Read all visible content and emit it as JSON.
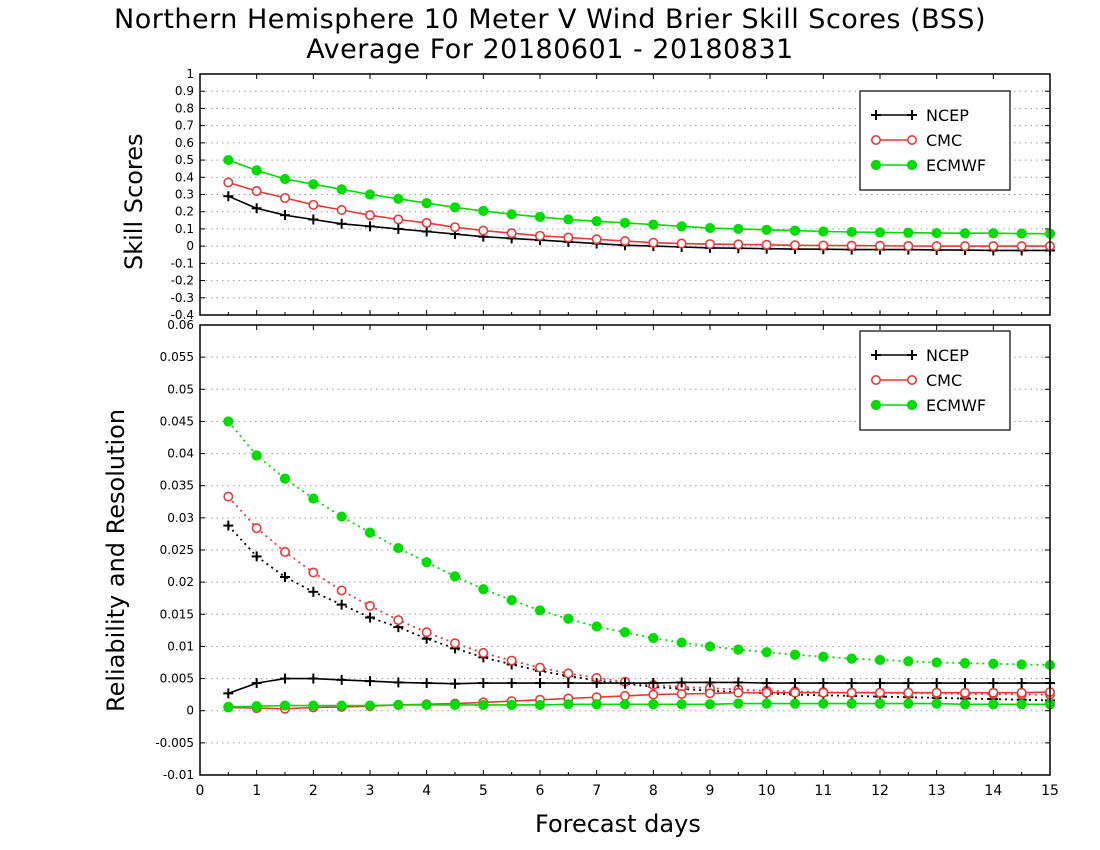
{
  "title_line1": "Northern Hemisphere 10 Meter V Wind Brier Skill Scores (BSS)",
  "title_line2": "Average For 20180601 - 20180831",
  "xlabel": "Forecast days",
  "colors": {
    "NCEP": "#000000",
    "CMC": "#e83838",
    "ECMWF": "#00dc00",
    "grid": "#9a9a9a"
  },
  "chart_data": [
    {
      "type": "line",
      "ylabel": "Skill Scores",
      "ylim": [
        -0.4,
        1
      ],
      "xlim": [
        0,
        15
      ],
      "yticks": [
        "-0.4",
        "-0.3",
        "-0.2",
        "-0.1",
        "0",
        "0.1",
        "0.2",
        "0.3",
        "0.4",
        "0.5",
        "0.6",
        "0.7",
        "0.8",
        "0.9",
        "1"
      ],
      "xticks": [
        "0",
        "1",
        "2",
        "3",
        "4",
        "5",
        "6",
        "7",
        "8",
        "9",
        "10",
        "11",
        "12",
        "13",
        "14",
        "15"
      ],
      "grid": "dotted horizontal",
      "legend": {
        "position": "top-right",
        "entries": [
          "NCEP",
          "CMC",
          "ECMWF"
        ]
      },
      "x": [
        0.5,
        1,
        1.5,
        2,
        2.5,
        3,
        3.5,
        4,
        4.5,
        5,
        5.5,
        6,
        6.5,
        7,
        7.5,
        8,
        8.5,
        9,
        9.5,
        10,
        10.5,
        11,
        11.5,
        12,
        12.5,
        13,
        13.5,
        14,
        14.5,
        15
      ],
      "series": [
        {
          "name": "NCEP",
          "marker": "plus",
          "style": "solid",
          "values": [
            0.29,
            0.22,
            0.18,
            0.155,
            0.13,
            0.115,
            0.1,
            0.085,
            0.07,
            0.055,
            0.045,
            0.035,
            0.025,
            0.015,
            0.005,
            0.0,
            -0.005,
            -0.01,
            -0.012,
            -0.015,
            -0.017,
            -0.018,
            -0.02,
            -0.02,
            -0.02,
            -0.022,
            -0.023,
            -0.025,
            -0.025,
            -0.025
          ]
        },
        {
          "name": "CMC",
          "marker": "open-circle",
          "style": "solid",
          "values": [
            0.37,
            0.32,
            0.28,
            0.24,
            0.21,
            0.18,
            0.155,
            0.135,
            0.11,
            0.09,
            0.075,
            0.06,
            0.05,
            0.04,
            0.03,
            0.02,
            0.015,
            0.012,
            0.01,
            0.008,
            0.005,
            0.004,
            0.003,
            0.002,
            0.001,
            0.0,
            0.0,
            0.0,
            0.0,
            0.0
          ]
        },
        {
          "name": "ECMWF",
          "marker": "filled-circle",
          "style": "solid",
          "values": [
            0.5,
            0.44,
            0.39,
            0.36,
            0.33,
            0.3,
            0.275,
            0.25,
            0.225,
            0.205,
            0.185,
            0.17,
            0.155,
            0.145,
            0.135,
            0.125,
            0.115,
            0.105,
            0.1,
            0.095,
            0.09,
            0.085,
            0.082,
            0.08,
            0.078,
            0.076,
            0.075,
            0.075,
            0.073,
            0.072
          ]
        }
      ]
    },
    {
      "type": "line",
      "ylabel": "Reliability and Resolution",
      "ylim": [
        -0.01,
        0.06
      ],
      "xlim": [
        0,
        15
      ],
      "yticks": [
        "-0.01",
        "-0.005",
        "0",
        "0.005",
        "0.01",
        "0.015",
        "0.02",
        "0.025",
        "0.03",
        "0.035",
        "0.04",
        "0.045",
        "0.05",
        "0.055",
        "0.06"
      ],
      "xticks": [
        "0",
        "1",
        "2",
        "3",
        "4",
        "5",
        "6",
        "7",
        "8",
        "9",
        "10",
        "11",
        "12",
        "13",
        "14",
        "15"
      ],
      "grid": "dotted horizontal",
      "legend": {
        "position": "top-right",
        "entries": [
          "NCEP",
          "CMC",
          "ECMWF"
        ]
      },
      "x": [
        0.5,
        1,
        1.5,
        2,
        2.5,
        3,
        3.5,
        4,
        4.5,
        5,
        5.5,
        6,
        6.5,
        7,
        7.5,
        8,
        8.5,
        9,
        9.5,
        10,
        10.5,
        11,
        11.5,
        12,
        12.5,
        13,
        13.5,
        14,
        14.5,
        15
      ],
      "series": [
        {
          "name": "NCEP",
          "marker": "plus",
          "style": "dotted",
          "values": [
            0.0288,
            0.024,
            0.0208,
            0.0185,
            0.0165,
            0.0145,
            0.013,
            0.0112,
            0.0097,
            0.0083,
            0.0072,
            0.0062,
            0.0054,
            0.0047,
            0.0042,
            0.0037,
            0.0034,
            0.0031,
            0.0029,
            0.0027,
            0.0025,
            0.0024,
            0.0023,
            0.0022,
            0.0021,
            0.002,
            0.0019,
            0.0018,
            0.0017,
            0.0016
          ]
        },
        {
          "name": "CMC",
          "marker": "open-circle",
          "style": "dotted",
          "values": [
            0.0333,
            0.0284,
            0.0247,
            0.0215,
            0.0187,
            0.0163,
            0.0141,
            0.0122,
            0.0105,
            0.009,
            0.0078,
            0.0067,
            0.0058,
            0.0051,
            0.0045,
            0.004,
            0.0037,
            0.0035,
            0.0033,
            0.0031,
            0.003,
            0.0029,
            0.0028,
            0.0028,
            0.0027,
            0.0027,
            0.0026,
            0.0026,
            0.0025,
            0.0025
          ]
        },
        {
          "name": "ECMWF",
          "marker": "filled-circle",
          "style": "dotted",
          "values": [
            0.045,
            0.0397,
            0.0361,
            0.033,
            0.0302,
            0.0277,
            0.0253,
            0.0231,
            0.0209,
            0.0189,
            0.0172,
            0.0156,
            0.0143,
            0.0131,
            0.0122,
            0.0113,
            0.0106,
            0.01,
            0.0095,
            0.0091,
            0.0087,
            0.0084,
            0.0081,
            0.0079,
            0.0077,
            0.0075,
            0.0074,
            0.0073,
            0.0072,
            0.0071
          ]
        },
        {
          "name": "NCEP",
          "marker": "plus",
          "style": "solid",
          "values": [
            0.0027,
            0.0043,
            0.005,
            0.005,
            0.0048,
            0.0046,
            0.0044,
            0.0043,
            0.0042,
            0.0043,
            0.0043,
            0.0043,
            0.0043,
            0.0043,
            0.0043,
            0.0043,
            0.0044,
            0.0044,
            0.0044,
            0.0043,
            0.0043,
            0.0043,
            0.0043,
            0.0043,
            0.0043,
            0.0043,
            0.0043,
            0.0043,
            0.0043,
            0.0043
          ]
        },
        {
          "name": "CMC",
          "marker": "open-circle",
          "style": "solid",
          "values": [
            0.0005,
            0.0004,
            0.0003,
            0.0005,
            0.0006,
            0.0007,
            0.0009,
            0.001,
            0.0011,
            0.0013,
            0.0015,
            0.0017,
            0.0019,
            0.0021,
            0.0023,
            0.0025,
            0.0026,
            0.0027,
            0.0028,
            0.0028,
            0.0028,
            0.0028,
            0.0028,
            0.0028,
            0.0028,
            0.0028,
            0.0028,
            0.0028,
            0.0028,
            0.0029
          ]
        },
        {
          "name": "ECMWF",
          "marker": "filled-circle",
          "style": "solid",
          "values": [
            0.0006,
            0.0007,
            0.0008,
            0.0008,
            0.0008,
            0.0008,
            0.0009,
            0.0009,
            0.0009,
            0.0009,
            0.0009,
            0.0009,
            0.001,
            0.001,
            0.001,
            0.001,
            0.001,
            0.001,
            0.0011,
            0.0011,
            0.0011,
            0.0011,
            0.0011,
            0.0011,
            0.0011,
            0.0011,
            0.001,
            0.001,
            0.001,
            0.001
          ]
        }
      ]
    }
  ]
}
